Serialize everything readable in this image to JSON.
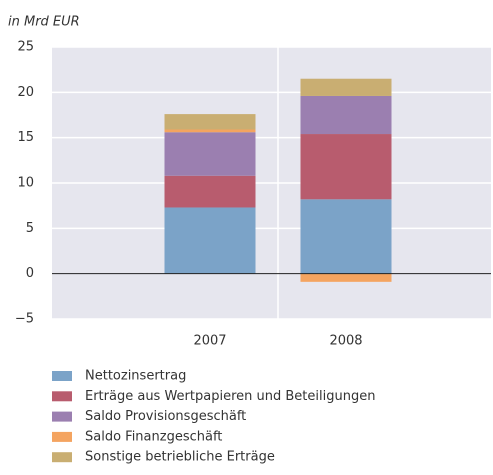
{
  "chart_data": {
    "type": "bar",
    "stacked": true,
    "y_label": "in Mrd EUR",
    "categories": [
      "2007",
      "2008"
    ],
    "series": [
      {
        "name": "Nettozinsertrag",
        "color": "#7ba3c8",
        "values": [
          7.3,
          8.2
        ]
      },
      {
        "name": "Erträge aus Wertpapieren und Beteiligungen",
        "color": "#b85c6e",
        "values": [
          3.5,
          7.2
        ]
      },
      {
        "name": "Saldo Provisionsgeschäft",
        "color": "#9b7fb0",
        "values": [
          4.8,
          4.2
        ]
      },
      {
        "name": "Saldo Finanzgeschäft",
        "color": "#f4a460",
        "values": [
          0.3,
          -0.9
        ]
      },
      {
        "name": "Sonstige betriebliche Erträge",
        "color": "#c9ae72",
        "values": [
          1.7,
          1.9
        ]
      }
    ],
    "ylim": [
      -5,
      25
    ],
    "yticks": [
      {
        "value": -5,
        "label": "−5"
      },
      0,
      5,
      10,
      15,
      20,
      25
    ],
    "grid": true
  }
}
